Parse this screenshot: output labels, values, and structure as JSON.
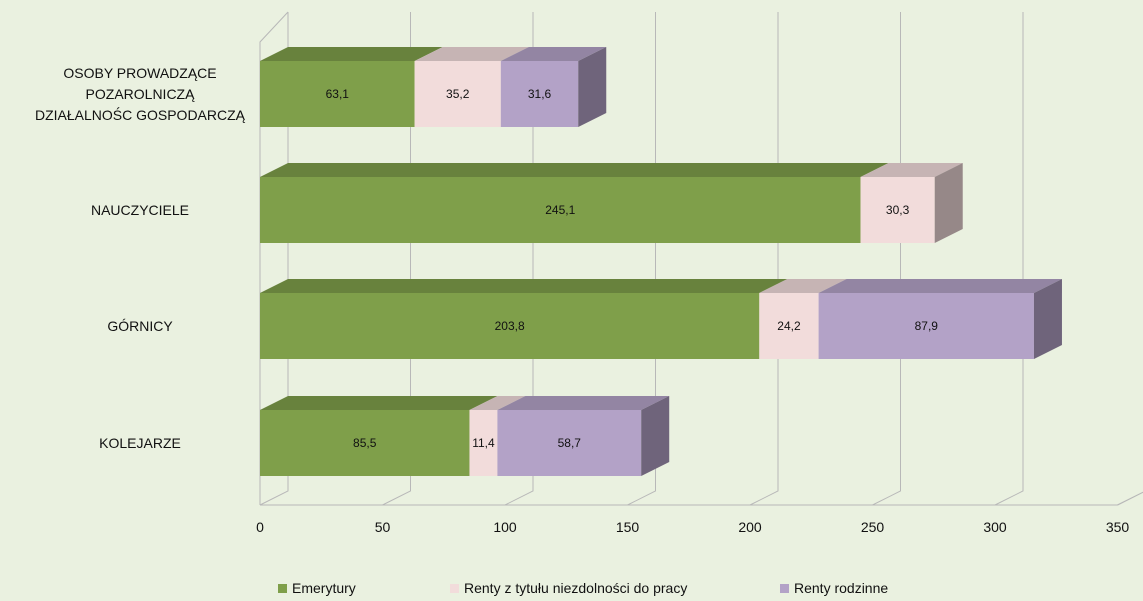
{
  "chart_data": {
    "type": "bar",
    "orientation": "horizontal",
    "stacked": true,
    "three_d": true,
    "categories": [
      [
        "KOLEJARZE"
      ],
      [
        "GÓRNICY"
      ],
      [
        "NAUCZYCIELE"
      ],
      [
        "OSOBY PROWADZĄCE",
        "POZAROLNICZĄ",
        "DZIAŁALNOŚC GOSPODARCZĄ"
      ]
    ],
    "series": [
      {
        "name": "Emerytury",
        "color": "#7f9f4a",
        "values": [
          85.5,
          203.8,
          245.1,
          63.1
        ],
        "labels": [
          "85,5",
          "203,8",
          "245,1",
          "63,1"
        ]
      },
      {
        "name": "Renty z tytułu niezdolności do pracy",
        "color": "#f2dcdb",
        "values": [
          11.4,
          24.2,
          30.3,
          35.2
        ],
        "labels": [
          "11,4",
          "24,2",
          "30,3",
          "35,2"
        ]
      },
      {
        "name": "Renty rodzinne",
        "color": "#b3a2c7",
        "values": [
          58.7,
          87.9,
          null,
          31.6
        ],
        "labels": [
          "58,7",
          "87,9",
          "",
          "31,6"
        ]
      }
    ],
    "x_ticks": [
      0,
      50,
      100,
      150,
      200,
      250,
      300,
      350
    ],
    "xlim": [
      0,
      350
    ],
    "grid": true,
    "legend_position": "bottom"
  }
}
